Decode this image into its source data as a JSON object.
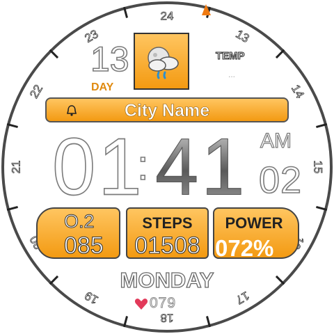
{
  "dial": {
    "hours": [
      "24",
      "13",
      "14",
      "15",
      "16",
      "17",
      "18",
      "19",
      "20",
      "21",
      "22",
      "23"
    ],
    "ring_color": "#4a4a4a",
    "marker_color": "#f07a10"
  },
  "date": {
    "day_number": "13",
    "day_label": "DAY"
  },
  "weather": {
    "icon": "cloud-rain-icon",
    "temp_label": "TEMP",
    "temp_value": "..."
  },
  "city": {
    "name": "City Name",
    "alarm_icon": "bell-icon"
  },
  "time": {
    "hours": "01",
    "separator": ":",
    "minutes": "41",
    "ampm": "AM",
    "seconds": "02"
  },
  "stats": {
    "o2": {
      "label": "O.2",
      "value": "085"
    },
    "steps": {
      "label": "STEPS",
      "value": "01508"
    },
    "power": {
      "label": "POWER",
      "value": "072%"
    }
  },
  "weekday": "MONDAY",
  "heart": {
    "icon": "heart-icon",
    "value": "079"
  },
  "colors": {
    "accent": "#f39a12",
    "accent_light": "#ffc560",
    "text_dark": "#333333"
  }
}
